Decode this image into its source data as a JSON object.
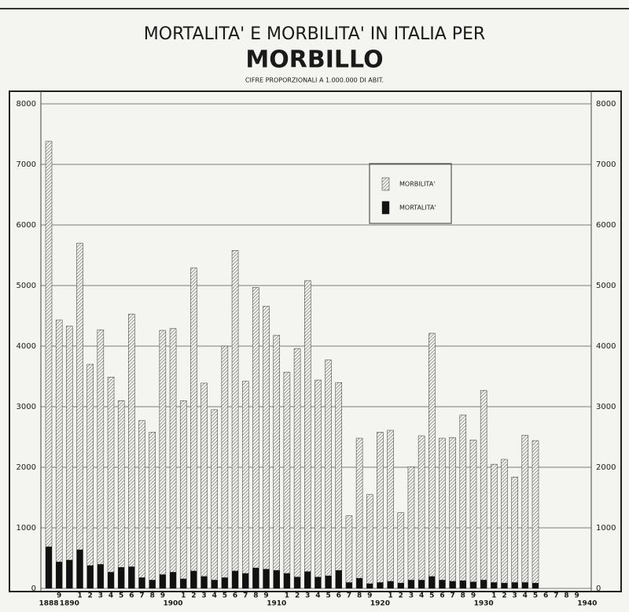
{
  "chart_data": {
    "type": "bar",
    "title": "MORTALITA' E MORBILITA' IN ITALIA PER",
    "subtitle": "MORBILLO",
    "note": "CIFRE PROPORZIONALI A 1.000.000 DI ABIT.",
    "categories": [
      "1888",
      "9",
      "1890",
      "1",
      "2",
      "3",
      "4",
      "5",
      "6",
      "7",
      "8",
      "9",
      "1900",
      "1",
      "2",
      "3",
      "4",
      "5",
      "6",
      "7",
      "8",
      "9",
      "1910",
      "1",
      "2",
      "3",
      "4",
      "5",
      "6",
      "7",
      "8",
      "9",
      "1920",
      "1",
      "2",
      "3",
      "4",
      "5",
      "6",
      "7",
      "8",
      "9",
      "1930",
      "1",
      "2",
      "3",
      "4",
      "5",
      "6",
      "7",
      "8",
      "9",
      "1940"
    ],
    "series": [
      {
        "name": "MORBILITA'",
        "color": "#6a6a6a",
        "hatch": true,
        "values": [
          7380,
          4430,
          4330,
          5700,
          3700,
          4270,
          3490,
          3100,
          4530,
          2770,
          2580,
          4260,
          4290,
          3100,
          5290,
          3390,
          2950,
          4000,
          5580,
          3420,
          4970,
          4660,
          4180,
          3570,
          3960,
          5080,
          3440,
          3770,
          3400,
          1200,
          2480,
          1550,
          2580,
          2610,
          1250,
          2010,
          2520,
          4210,
          2480,
          2490,
          2860,
          2450,
          3270,
          2050,
          2130,
          1840,
          2530,
          2440,
          null,
          null,
          null,
          null,
          null
        ]
      },
      {
        "name": "MORTALITA'",
        "color": "#111111",
        "hatch": false,
        "values": [
          690,
          440,
          470,
          640,
          380,
          400,
          270,
          350,
          360,
          180,
          140,
          230,
          270,
          160,
          290,
          200,
          140,
          180,
          290,
          250,
          340,
          320,
          300,
          250,
          190,
          280,
          190,
          210,
          300,
          100,
          170,
          80,
          100,
          120,
          90,
          140,
          140,
          200,
          140,
          120,
          130,
          110,
          140,
          100,
          90,
          100,
          100,
          90,
          null,
          null,
          null,
          null,
          null
        ]
      }
    ],
    "ylim": [
      0,
      8000
    ],
    "yticks": [
      0,
      1000,
      2000,
      3000,
      4000,
      5000,
      6000,
      7000,
      8000
    ],
    "grid": true
  }
}
